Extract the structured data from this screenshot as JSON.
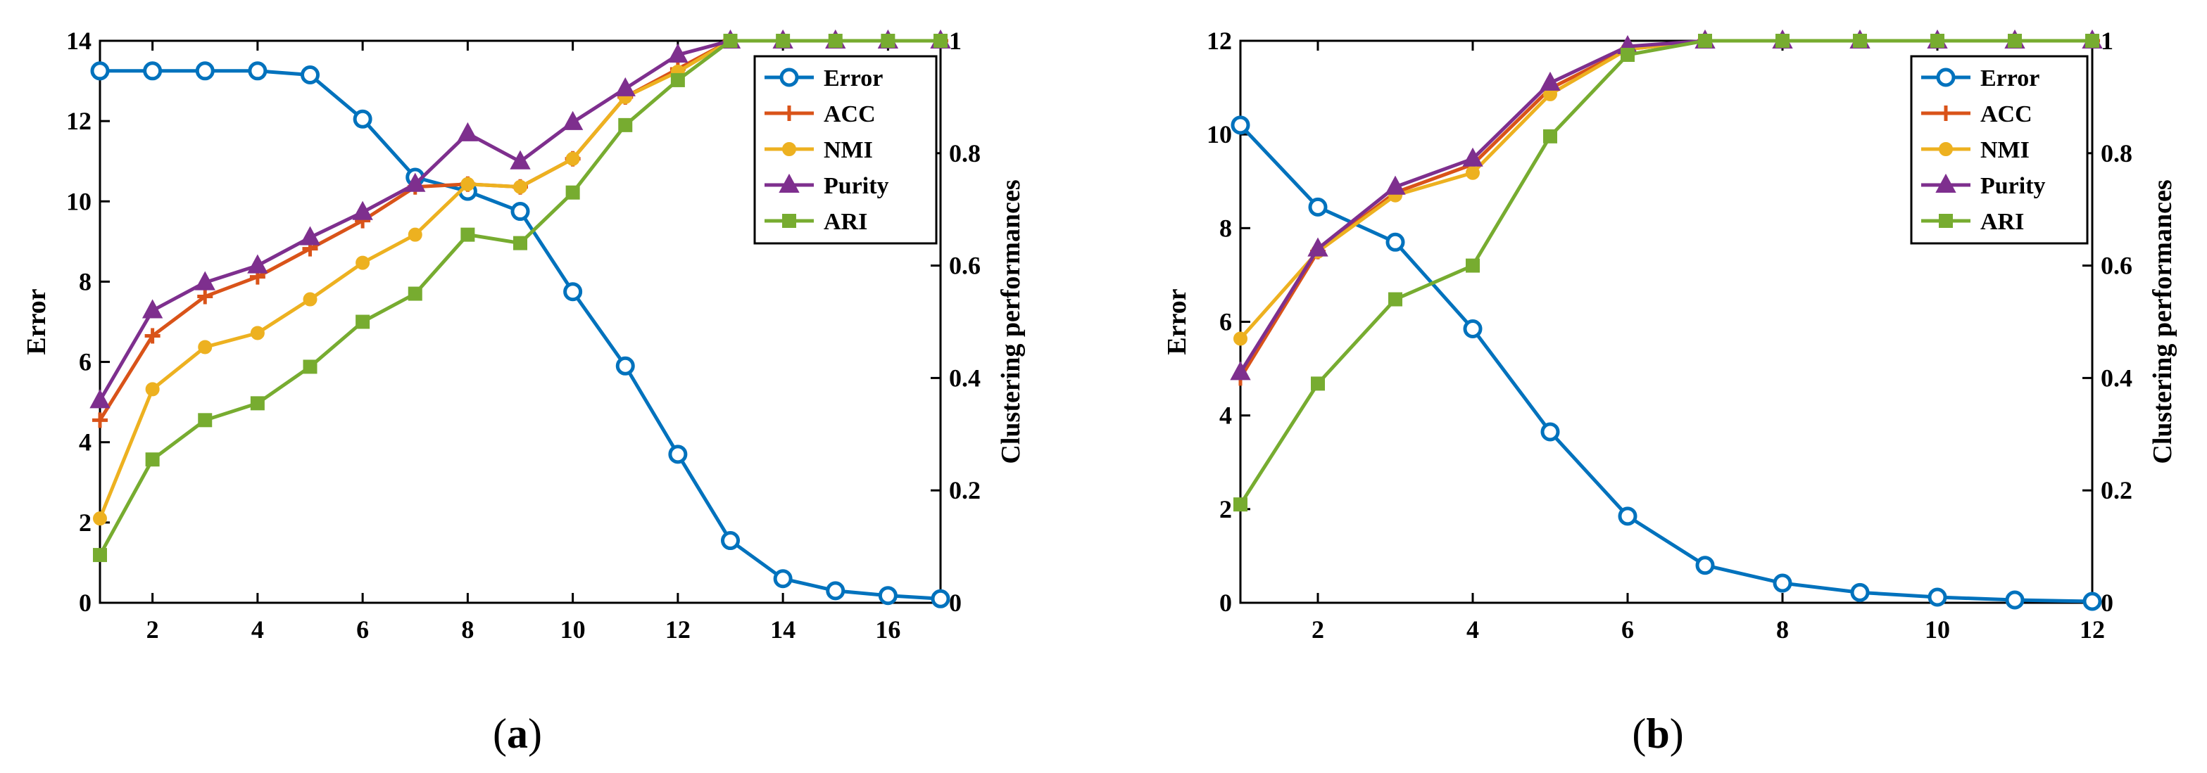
{
  "chart_data": [
    {
      "type": "line",
      "panel_label": {
        "open": "(",
        "letter": "a",
        "close": ")"
      },
      "x": [
        1,
        2,
        3,
        4,
        5,
        6,
        7,
        8,
        9,
        10,
        11,
        12,
        13,
        14,
        15,
        16,
        17
      ],
      "xlim": [
        1,
        17
      ],
      "xticks": [
        2,
        4,
        6,
        8,
        10,
        12,
        14,
        16
      ],
      "ylabel_left": "Error",
      "ylim_left": [
        0,
        14
      ],
      "yticks_left": [
        0,
        2,
        4,
        6,
        8,
        10,
        12,
        14
      ],
      "ylabel_right": "Clustering performances",
      "ylim_right": [
        0,
        1
      ],
      "yticks_right": [
        0,
        0.2,
        0.4,
        0.6,
        0.8,
        1
      ],
      "legend_position": "top-right",
      "series": [
        {
          "name": "Error",
          "axis": "left",
          "marker": "circle",
          "color": "#0072BD",
          "values": [
            13.25,
            13.25,
            13.25,
            13.25,
            13.15,
            12.05,
            10.6,
            10.25,
            9.75,
            7.75,
            5.9,
            3.7,
            1.55,
            0.6,
            0.3,
            0.18,
            0.1
          ]
        },
        {
          "name": "ACC",
          "axis": "right",
          "marker": "plus",
          "color": "#D95319",
          "values": [
            0.325,
            0.475,
            0.545,
            0.58,
            0.63,
            0.68,
            0.74,
            0.745,
            0.74,
            0.79,
            0.9,
            0.95,
            1,
            1,
            1,
            1,
            1
          ]
        },
        {
          "name": "NMI",
          "axis": "right",
          "marker": "dot",
          "color": "#EDB120",
          "values": [
            0.15,
            0.38,
            0.455,
            0.48,
            0.54,
            0.605,
            0.655,
            0.745,
            0.74,
            0.79,
            0.9,
            0.945,
            1,
            1,
            1,
            1,
            1
          ]
        },
        {
          "name": "Purity",
          "axis": "right",
          "marker": "triangle",
          "color": "#7E2F8E",
          "values": [
            0.36,
            0.52,
            0.57,
            0.6,
            0.65,
            0.695,
            0.745,
            0.835,
            0.785,
            0.855,
            0.915,
            0.975,
            1,
            1,
            1,
            1,
            1
          ]
        },
        {
          "name": "ARI",
          "axis": "right",
          "marker": "square",
          "color": "#77AC30",
          "values": [
            0.085,
            0.255,
            0.325,
            0.355,
            0.42,
            0.5,
            0.55,
            0.655,
            0.64,
            0.73,
            0.85,
            0.93,
            1,
            1,
            1,
            1,
            1
          ]
        }
      ]
    },
    {
      "type": "line",
      "panel_label": {
        "open": "(",
        "letter": "b",
        "close": ")"
      },
      "x": [
        1,
        2,
        3,
        4,
        5,
        6,
        7,
        8,
        9,
        10,
        11,
        12
      ],
      "xlim": [
        1,
        12
      ],
      "xticks": [
        2,
        4,
        6,
        8,
        10,
        12
      ],
      "ylabel_left": "Error",
      "ylim_left": [
        0,
        12
      ],
      "yticks_left": [
        0,
        2,
        4,
        6,
        8,
        10,
        12
      ],
      "ylabel_right": "Clustering performances",
      "ylim_right": [
        0,
        1
      ],
      "yticks_right": [
        0,
        0.2,
        0.4,
        0.6,
        0.8,
        1
      ],
      "legend_position": "top-right",
      "series": [
        {
          "name": "Error",
          "axis": "left",
          "marker": "circle",
          "color": "#0072BD",
          "values": [
            10.2,
            8.45,
            7.7,
            5.85,
            3.65,
            1.85,
            0.8,
            0.42,
            0.22,
            0.12,
            0.06,
            0.03
          ]
        },
        {
          "name": "ACC",
          "axis": "right",
          "marker": "plus",
          "color": "#D95319",
          "values": [
            0.4,
            0.625,
            0.73,
            0.78,
            0.915,
            0.985,
            1,
            1,
            1,
            1,
            1,
            1
          ]
        },
        {
          "name": "NMI",
          "axis": "right",
          "marker": "dot",
          "color": "#EDB120",
          "values": [
            0.47,
            0.625,
            0.725,
            0.765,
            0.905,
            0.985,
            1,
            1,
            1,
            1,
            1,
            1
          ]
        },
        {
          "name": "Purity",
          "axis": "right",
          "marker": "triangle",
          "color": "#7E2F8E",
          "values": [
            0.41,
            0.63,
            0.74,
            0.79,
            0.925,
            0.99,
            1,
            1,
            1,
            1,
            1,
            1
          ]
        },
        {
          "name": "ARI",
          "axis": "right",
          "marker": "square",
          "color": "#77AC30",
          "values": [
            0.175,
            0.39,
            0.54,
            0.6,
            0.83,
            0.975,
            1,
            1,
            1,
            1,
            1,
            1
          ]
        }
      ]
    }
  ]
}
